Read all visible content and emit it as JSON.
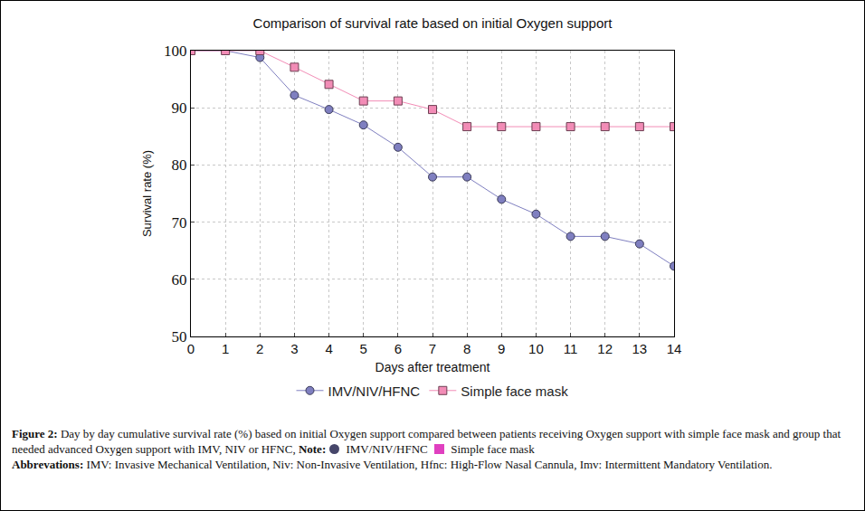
{
  "chart_data": {
    "type": "line",
    "title": "Comparison of survival rate based on initial Oxygen support",
    "x_label": "Days after treatment",
    "y_label": "Survival rate (%)",
    "x": [
      0,
      1,
      2,
      3,
      4,
      5,
      6,
      7,
      8,
      9,
      10,
      11,
      12,
      13,
      14
    ],
    "series": [
      {
        "name": "IMV/NIV/HFNC",
        "color": "#7f7fc0",
        "marker": "circle",
        "values": [
          100,
          100,
          98.8,
          92.2,
          89.7,
          87,
          83.1,
          77.9,
          77.9,
          74,
          71.4,
          67.5,
          67.5,
          66.2,
          62.3
        ]
      },
      {
        "name": "Simple face mask",
        "color": "#f28cb6",
        "marker": "square",
        "values": [
          100,
          100,
          100,
          97.1,
          94.1,
          91.2,
          91.2,
          89.7,
          86.7,
          86.7,
          86.7,
          86.7,
          86.7,
          86.7,
          86.7
        ]
      }
    ],
    "xlim": [
      0,
      14
    ],
    "xticks": [
      0,
      1,
      2,
      3,
      4,
      5,
      6,
      7,
      8,
      9,
      10,
      11,
      12,
      13,
      14
    ],
    "ylim": [
      50,
      100
    ],
    "yticks": [
      50,
      60,
      70,
      80,
      90,
      100
    ],
    "grid": true,
    "legend": "bottom",
    "caption": {
      "figure_label": "Figure 2:",
      "figure_text": "Day by day cumulative survival rate (%) based on initial Oxygen support compared between patients receiving Oxygen support with simple face mask and group that needed advanced Oxygen support with IMV, NIV or HFNC,",
      "note_label": "Note:",
      "abbreviations_label": "Abbrevations:",
      "abbreviations_text": "IMV: Invasive Mechanical Ventilation, Niv: Non-Invasive Ventilation, Hfnc: High-Flow Nasal Cannula, Imv: Intermittent Mandatory Ventilation."
    }
  }
}
